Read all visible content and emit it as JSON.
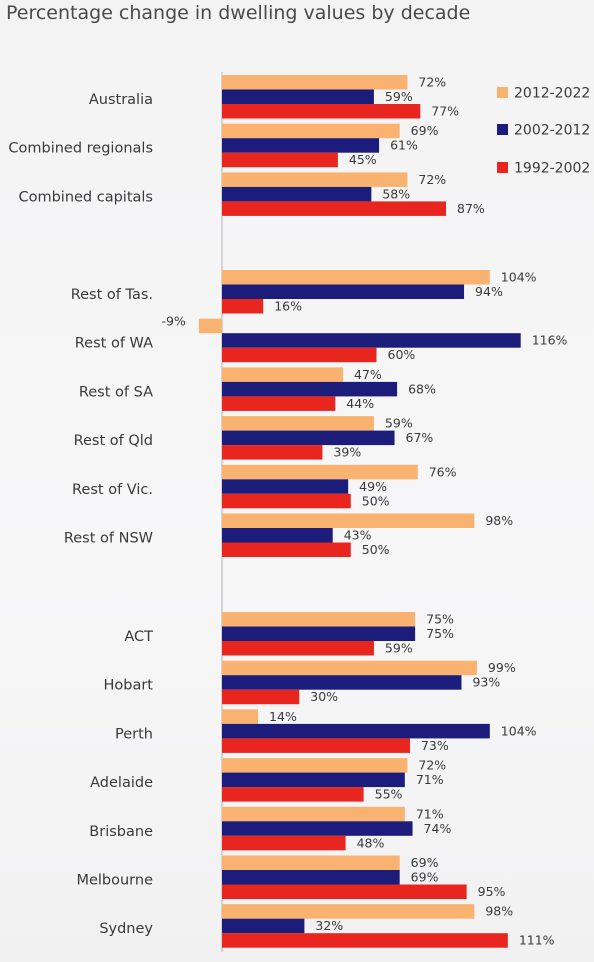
{
  "chart_data": {
    "type": "bar",
    "orientation": "horizontal",
    "title": "Percentage change in dwelling values by decade",
    "categories": [
      "Australia",
      "Combined regionals",
      "Combined capitals",
      "Rest of Tas.",
      "Rest of WA",
      "Rest of SA",
      "Rest of Qld",
      "Rest of Vic.",
      "Rest of NSW",
      "ACT",
      "Hobart",
      "Perth",
      "Adelaide",
      "Brisbane",
      "Melbourne",
      "Sydney"
    ],
    "groups": [
      [
        "Australia",
        "Combined regionals",
        "Combined capitals"
      ],
      [
        "Rest of Tas.",
        "Rest of WA",
        "Rest of SA",
        "Rest of Qld",
        "Rest of Vic.",
        "Rest of NSW"
      ],
      [
        "ACT",
        "Hobart",
        "Perth",
        "Adelaide",
        "Brisbane",
        "Melbourne",
        "Sydney"
      ]
    ],
    "series": [
      {
        "name": "2012-2022",
        "color": "#f9b26f",
        "values": [
          72,
          69,
          72,
          104,
          -9,
          47,
          59,
          76,
          98,
          75,
          99,
          14,
          72,
          71,
          69,
          98
        ]
      },
      {
        "name": "2002-2012",
        "color": "#1c1c7a",
        "values": [
          59,
          61,
          58,
          94,
          116,
          68,
          67,
          49,
          43,
          75,
          93,
          104,
          71,
          74,
          69,
          32
        ]
      },
      {
        "name": "1992-2002",
        "color": "#e8251f",
        "values": [
          77,
          45,
          87,
          16,
          60,
          44,
          39,
          50,
          50,
          59,
          30,
          73,
          55,
          48,
          95,
          111
        ]
      }
    ],
    "value_suffix": "%",
    "xlabel": "",
    "ylabel": "",
    "legend_position": "top-right",
    "grid": false
  }
}
